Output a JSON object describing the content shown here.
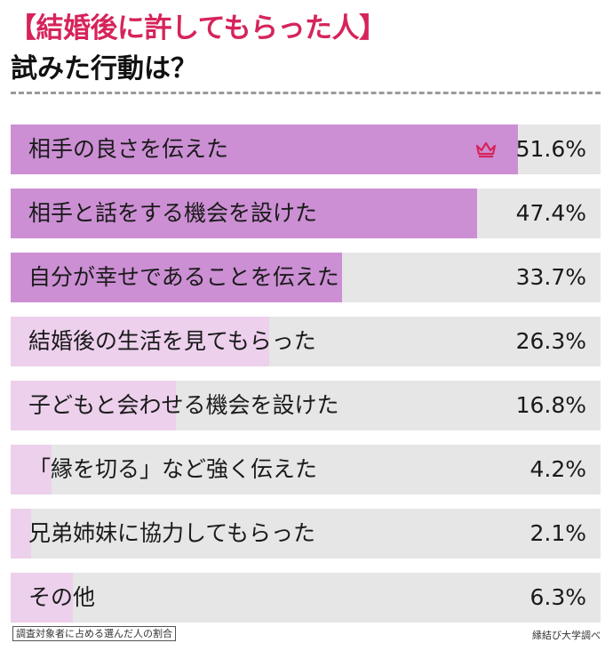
{
  "header": {
    "title_line1": "【結婚後に許してもらった人】",
    "title_line2": "試みた行動は？"
  },
  "chart_data": {
    "type": "bar",
    "orientation": "horizontal",
    "ylim": [
      0,
      60
    ],
    "categories": [
      "相手の良さを伝えた",
      "相手と話をする機会を設けた",
      "自分が幸せであることを伝えた",
      "結婚後の生活を見てもらった",
      "子どもと会わせる機会を設けた",
      "「縁を切る」など強く伝えた",
      "兄弟姉妹に協力してもらった",
      "その他"
    ],
    "values": [
      51.6,
      47.4,
      33.7,
      26.3,
      16.8,
      4.2,
      2.1,
      6.3
    ],
    "value_labels": [
      "51.6%",
      "47.4%",
      "33.7%",
      "26.3%",
      "16.8%",
      "4.2%",
      "2.1%",
      "6.3%"
    ],
    "top_marker_icon": "crown-icon"
  },
  "colors": {
    "title_accent": "#d6245a",
    "bar_top3": "#cc8fd4",
    "bar_rest": "#ecd0ec",
    "track": "#e6e6e6",
    "crown": "#d6245a"
  },
  "footer": {
    "note": "調査対象者に占める選んだ人の割合",
    "source": "縁結び大学調べ"
  }
}
